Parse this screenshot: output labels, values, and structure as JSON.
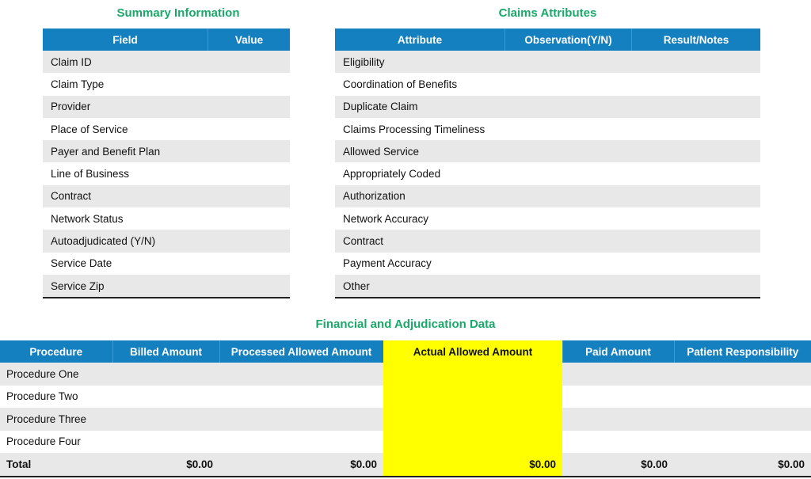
{
  "summary": {
    "title": "Summary Information",
    "headers": [
      "Field",
      "Value"
    ],
    "rows": [
      "Claim ID",
      "Claim Type",
      "Provider",
      "Place of Service",
      "Payer and Benefit Plan",
      "Line of Business",
      "Contract",
      "Network Status",
      "Autoadjudicated (Y/N)",
      "Service Date",
      "Service Zip"
    ]
  },
  "claims": {
    "title": "Claims Attributes",
    "headers": [
      "Attribute",
      "Observation(Y/N)",
      "Result/Notes"
    ],
    "rows": [
      "Eligibility",
      "Coordination of Benefits",
      "Duplicate Claim",
      "Claims Processing Timeliness",
      "Allowed Service",
      "Appropriately Coded",
      "Authorization",
      "Network Accuracy",
      "Contract",
      "Payment Accuracy",
      "Other"
    ]
  },
  "financial": {
    "title": "Financial and Adjudication Data",
    "headers": [
      "Procedure",
      "Billed Amount",
      "Processed Allowed Amount",
      "Actual Allowed Amount",
      "Paid Amount",
      "Patient Responsibility"
    ],
    "rows": [
      "Procedure One",
      "Procedure Two",
      "Procedure Three",
      "Procedure Four"
    ],
    "total": {
      "label": "Total",
      "billed": "$0.00",
      "processed": "$0.00",
      "actual": "$0.00",
      "paid": "$0.00",
      "patient": "$0.00"
    },
    "highlight_color": "#ffff00"
  },
  "colors": {
    "header": "#1580c0",
    "title": "#1aa86a",
    "stripe": "#e8e8e8"
  }
}
